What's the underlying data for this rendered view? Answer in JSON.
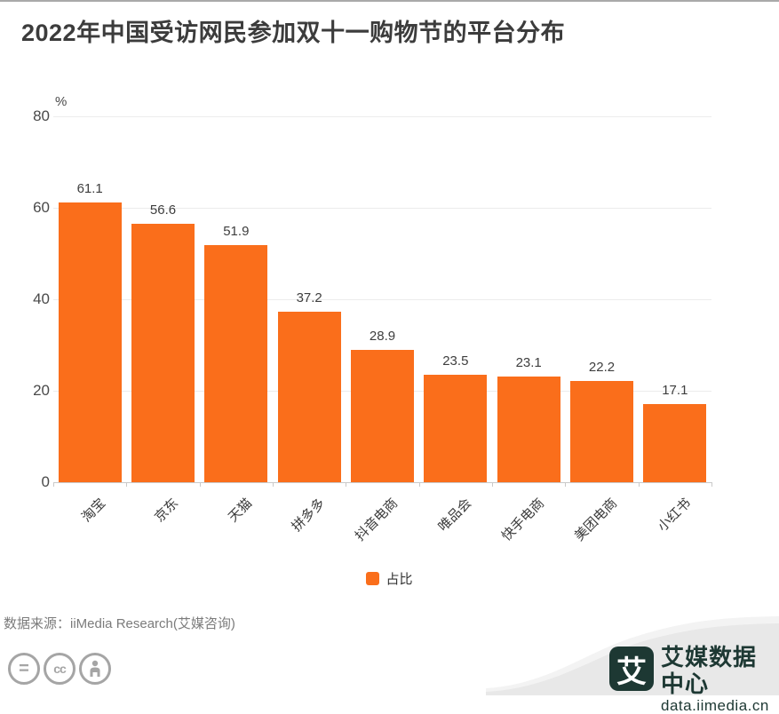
{
  "title": "2022年中国受访网民参加双十一购物节的平台分布",
  "chart_data": {
    "type": "bar",
    "categories": [
      "淘宝",
      "京东",
      "天猫",
      "拼多多",
      "抖音电商",
      "唯品会",
      "快手电商",
      "美团电商",
      "小红书"
    ],
    "values": [
      61.1,
      56.6,
      51.9,
      37.2,
      28.9,
      23.5,
      23.1,
      22.2,
      17.1
    ],
    "series_name": "占比",
    "unit_label": "%",
    "ylim": [
      0,
      80
    ],
    "yticks": [
      0,
      20,
      40,
      60,
      80
    ],
    "grid": true,
    "legend_position": "bottom",
    "bar_color": "#fa6e1b"
  },
  "legend": {
    "label": "占比"
  },
  "footer": {
    "source": "数据来源：iiMedia Research(艾媒咨询)",
    "license_icons": [
      "equals-icon",
      "cc-icon",
      "person-icon"
    ]
  },
  "branding": {
    "logo_char": "艾",
    "name": "艾媒数据中心",
    "domain": "data.iimedia.cn",
    "logo_color": "#1d3833",
    "wave_color": "#e8e8e8"
  },
  "colors": {
    "bar": "#fa6e1b",
    "title_text": "#3c3c3c",
    "axis_text": "#4a4a4a",
    "gridline": "#ececec",
    "source_text": "#7b7b7b"
  }
}
